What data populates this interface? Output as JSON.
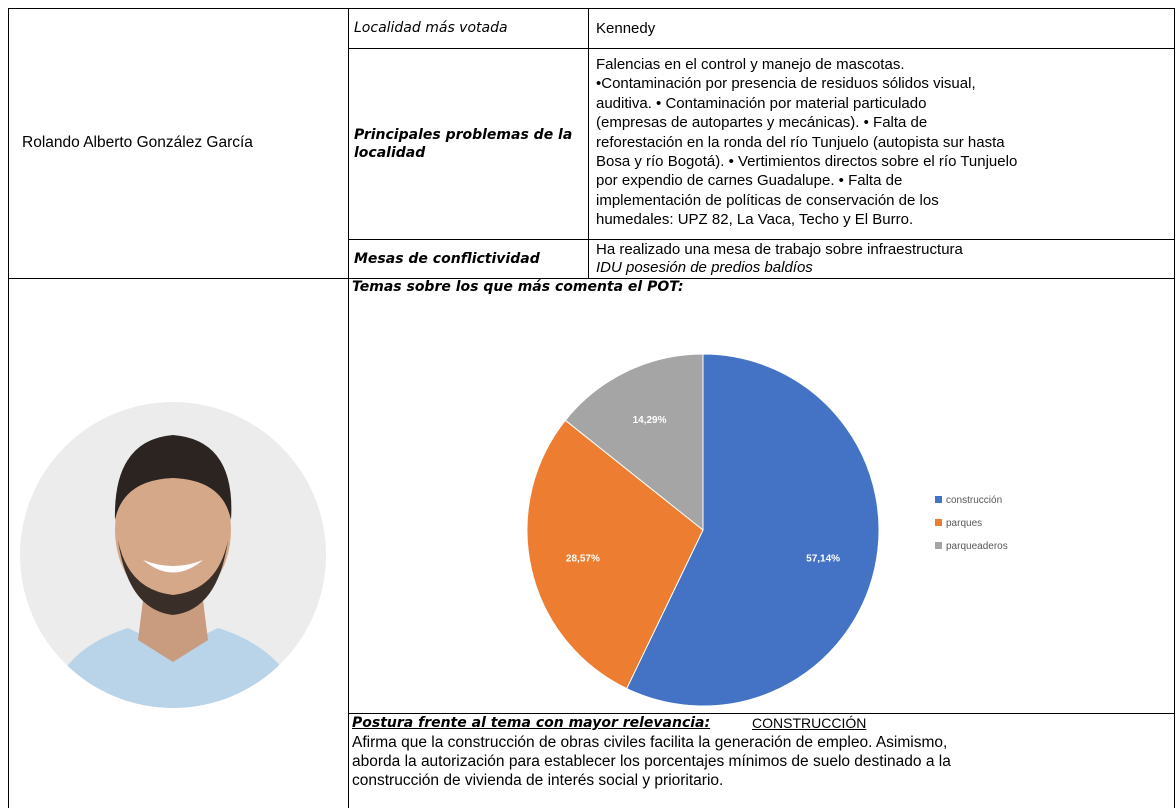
{
  "profile": {
    "name": "Rolando Alberto González García"
  },
  "table": {
    "rows": [
      {
        "label": "Localidad más votada",
        "lines": [
          "Kennedy"
        ]
      },
      {
        "label": "Principales problemas de la localidad",
        "lines": [
          "Falencias en el control y manejo de mascotas.",
          "•Contaminación por presencia de residuos sólidos visual,",
          "auditiva. • Contaminación por material particulado",
          "(empresas de autopartes y mecánicas). • Falta de",
          "reforestación en la ronda del río Tunjuelo (autopista sur hasta",
          "Bosa y río Bogotá). • Vertimientos directos sobre el río Tunjuelo",
          "por expendio de carnes Guadalupe. • Falta de",
          "implementación de políticas de conservación de los",
          "humedales: UPZ 82, La Vaca, Techo y El Burro."
        ]
      },
      {
        "label": "Mesas de conflictividad",
        "lines": [
          "Ha realizado una mesa de trabajo sobre infraestructura",
          "IDU posesión de predios baldíos"
        ]
      }
    ]
  },
  "chart_data": {
    "type": "pie",
    "title": "Temas sobre los que más comenta el POT:",
    "categories": [
      "construcción",
      "parques",
      "parqueaderos"
    ],
    "values": [
      57.14,
      28.57,
      14.29
    ],
    "value_labels": [
      "57,14%",
      "28,57%",
      "14,29%"
    ],
    "colors": [
      "#4472c4",
      "#ed7d31",
      "#a5a5a5"
    ],
    "legend": "right"
  },
  "stance": {
    "heading": "Postura frente al tema con mayor relevancia:",
    "topic": "CONSTRUCCIÓN",
    "lines": [
      "Afirma que la construcción de obras civiles facilita la generación de empleo. Asimismo,",
      "aborda la autorización para establecer los porcentajes mínimos de suelo destinado a la",
      "construcción de vivienda de interés social y prioritario."
    ]
  }
}
